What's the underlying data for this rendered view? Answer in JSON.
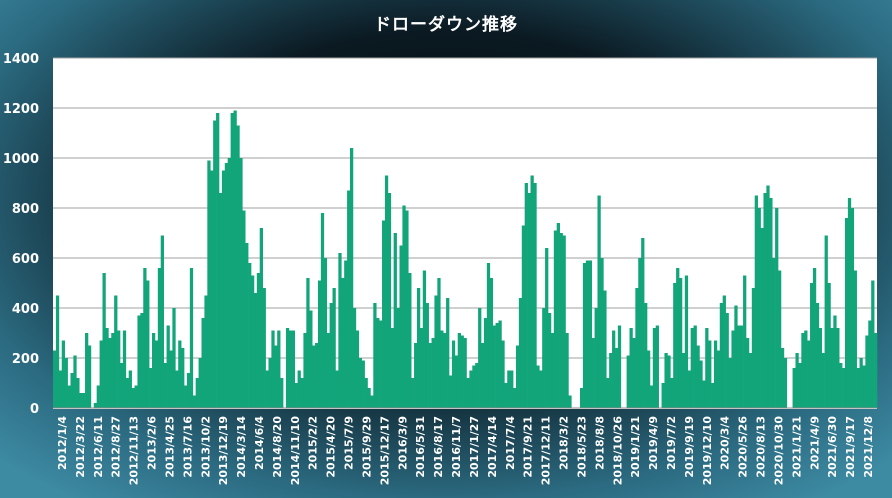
{
  "chart_data": {
    "type": "area",
    "title": "ドローダウン推移",
    "xlabel": "",
    "ylabel": "",
    "ylim": [
      0,
      1400
    ],
    "y_ticks": [
      0,
      200,
      400,
      600,
      800,
      1000,
      1200,
      1400
    ],
    "grid": true,
    "legend": "none",
    "colors": {
      "fill": "#13a57a",
      "plot_bg": "#ffffff",
      "grid": "#a0a0a0",
      "tick_text": "#ffffff"
    },
    "x_tick_labels": [
      "2012/1/4",
      "2012/3/22",
      "2012/6/11",
      "2012/8/27",
      "2012/11/13",
      "2013/2/6",
      "2013/4/25",
      "2013/7/16",
      "2013/10/2",
      "2013/12/19",
      "2014/3/14",
      "2014/6/4",
      "2014/8/20",
      "2014/11/10",
      "2015/2/2",
      "2015/4/20",
      "2015/7/9",
      "2015/9/29",
      "2015/12/17",
      "2016/3/9",
      "2016/5/31",
      "2016/8/17",
      "2016/11/7",
      "2017/1/27",
      "2017/4/14",
      "2017/7/4",
      "2017/9/21",
      "2017/12/11",
      "2018/3/2",
      "2018/5/23",
      "2018/8/8",
      "2018/10/26",
      "2019/1/21",
      "2019/4/9",
      "2019/7/2",
      "2019/9/19",
      "2019/12/10",
      "2020/3/4",
      "2020/5/26",
      "2020/8/13",
      "2020/10/30",
      "2021/1/21",
      "2021/4/9",
      "2021/6/30",
      "2021/9/17",
      "2021/12/8"
    ],
    "series": [
      {
        "values": [
          230,
          450,
          150,
          270,
          200,
          90,
          140,
          210,
          120,
          60,
          60,
          300,
          250,
          0,
          20,
          90,
          270,
          540,
          320,
          280,
          300,
          450,
          310,
          180,
          310,
          120,
          150,
          80,
          90,
          370,
          380,
          560,
          510,
          160,
          300,
          270,
          560,
          690,
          180,
          330,
          230,
          400,
          150,
          270,
          240,
          90,
          140,
          560,
          50,
          120,
          200,
          360,
          450,
          990,
          950,
          1150,
          1180,
          860,
          950,
          980,
          1000,
          1180,
          1190,
          1130,
          1000,
          790,
          660,
          580,
          530,
          460,
          540,
          720,
          480,
          150,
          200,
          310,
          250,
          310,
          120,
          0,
          320,
          310,
          310,
          100,
          150,
          120,
          300,
          520,
          390,
          250,
          260,
          510,
          780,
          600,
          300,
          420,
          480,
          150,
          620,
          520,
          590,
          870,
          1040,
          400,
          310,
          200,
          190,
          120,
          80,
          50,
          420,
          360,
          350,
          750,
          930,
          860,
          320,
          700,
          400,
          650,
          810,
          790,
          540,
          120,
          260,
          480,
          320,
          550,
          420,
          260,
          280,
          450,
          520,
          310,
          300,
          440,
          130,
          270,
          210,
          300,
          290,
          280,
          120,
          150,
          170,
          180,
          400,
          260,
          360,
          580,
          520,
          330,
          340,
          350,
          270,
          100,
          150,
          150,
          80,
          250,
          440,
          730,
          900,
          860,
          930,
          900,
          170,
          150,
          400,
          640,
          380,
          300,
          710,
          740,
          700,
          690,
          300,
          50,
          0,
          0,
          0,
          80,
          580,
          590,
          590,
          280,
          400,
          850,
          600,
          470,
          120,
          220,
          310,
          240,
          330,
          0,
          0,
          210,
          320,
          280,
          480,
          600,
          680,
          420,
          230,
          90,
          320,
          330,
          0,
          100,
          220,
          210,
          120,
          500,
          560,
          520,
          220,
          530,
          150,
          320,
          330,
          250,
          190,
          110,
          320,
          270,
          100,
          270,
          230,
          420,
          450,
          380,
          200,
          310,
          410,
          330,
          330,
          530,
          280,
          220,
          480,
          850,
          800,
          720,
          860,
          890,
          840,
          600,
          800,
          550,
          240,
          200,
          0,
          0,
          160,
          220,
          180,
          300,
          310,
          270,
          500,
          560,
          420,
          320,
          220,
          690,
          500,
          320,
          370,
          320,
          180,
          160,
          760,
          840,
          800,
          550,
          160,
          200,
          170,
          290,
          350,
          510,
          300
        ]
      }
    ]
  }
}
